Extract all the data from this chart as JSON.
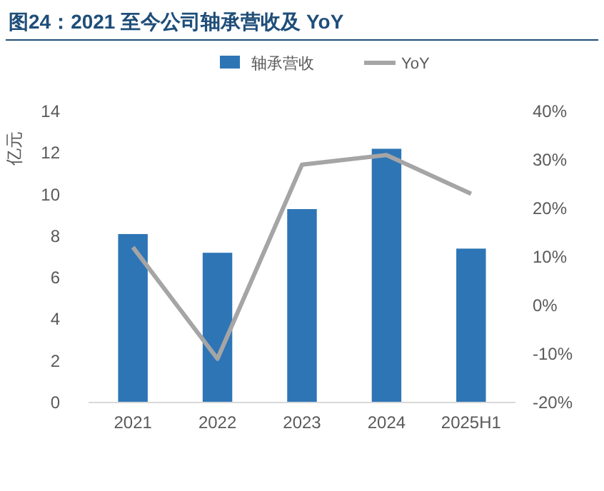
{
  "chart_data": {
    "type": "bar",
    "title": "图24：2021 至今公司轴承营收及 YoY",
    "ylabel": "亿元",
    "categories": [
      "2021",
      "2022",
      "2023",
      "2024",
      "2025H1"
    ],
    "series": [
      {
        "name": "轴承营收",
        "color": "#2e75b6",
        "values": [
          8.1,
          7.2,
          9.3,
          12.2,
          7.4
        ]
      },
      {
        "name": "YoY",
        "type": "line",
        "axis": "y2",
        "color": "#a5a5a5",
        "values": [
          12,
          -11,
          29,
          31,
          23
        ]
      }
    ],
    "ylim": [
      0,
      14
    ],
    "yticks": [
      0,
      2,
      4,
      6,
      8,
      10,
      12,
      14
    ],
    "y2lim": [
      -20,
      40
    ],
    "y2ticks": [
      {
        "value": -20,
        "label": "-20%"
      },
      {
        "value": -10,
        "label": "-10%"
      },
      {
        "value": 0,
        "label": "0%"
      },
      {
        "value": 10,
        "label": "10%"
      },
      {
        "value": 20,
        "label": "20%"
      },
      {
        "value": 30,
        "label": "30%"
      },
      {
        "value": 40,
        "label": "40%"
      }
    ],
    "legend": "top",
    "grid": false,
    "marker": "none",
    "line_style": "solid"
  }
}
